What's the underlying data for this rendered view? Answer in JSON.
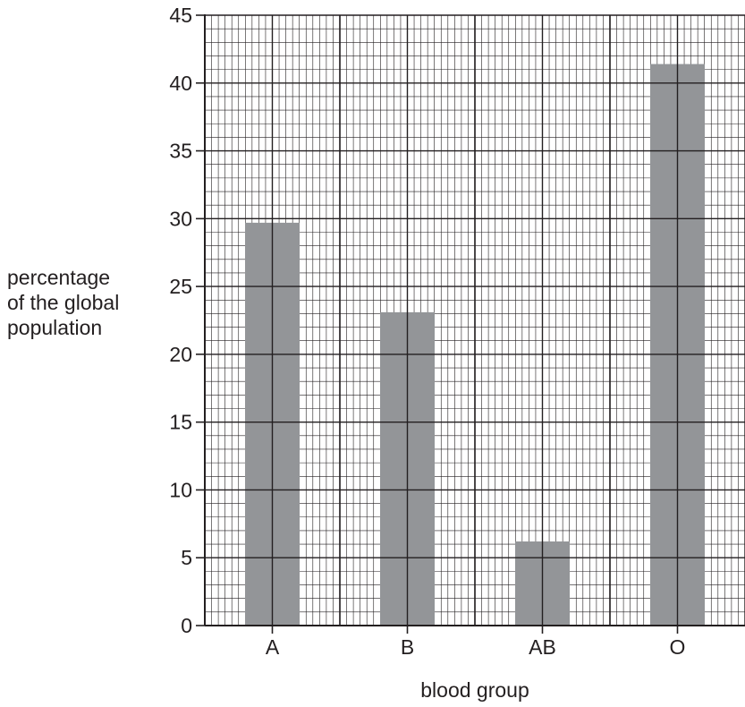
{
  "chart_data": {
    "type": "bar",
    "title": "",
    "xlabel": "blood group",
    "ylabel": [
      "percentage",
      "of the global",
      "population"
    ],
    "categories": [
      "A",
      "B",
      "AB",
      "O"
    ],
    "values": [
      29.7,
      23.1,
      6.2,
      41.4
    ],
    "ylim": [
      0,
      45
    ],
    "y_major_step": 5,
    "y_ticks": [
      "0",
      "5",
      "10",
      "15",
      "20",
      "25",
      "30",
      "35",
      "40",
      "45"
    ],
    "grid": true,
    "legend": "none",
    "bar_color": "#939598",
    "grid_color": "#231f20"
  }
}
